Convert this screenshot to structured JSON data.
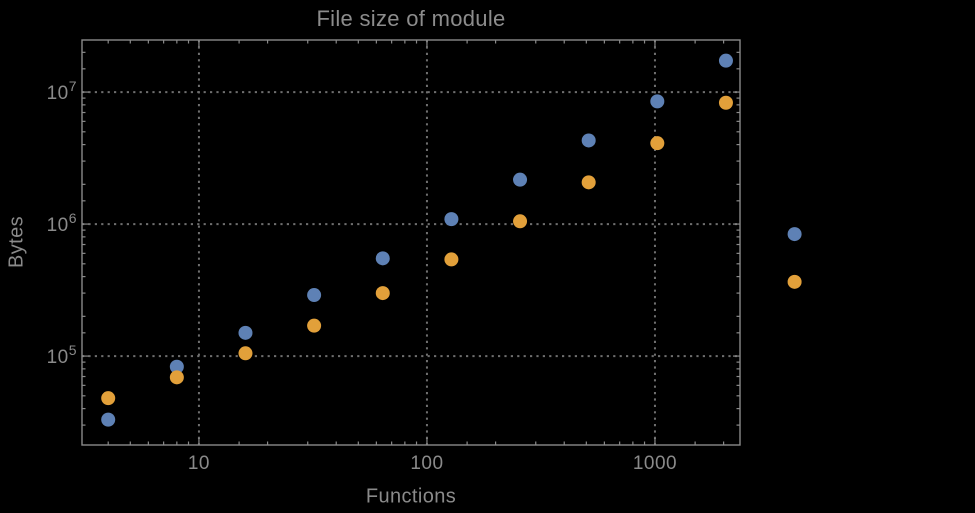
{
  "chart_data": {
    "type": "scatter",
    "title": "File size of module",
    "xlabel": "Functions",
    "ylabel": "Bytes",
    "x_scale": "log",
    "y_scale": "log",
    "xlim": [
      3.07,
      2360
    ],
    "ylim": [
      21200,
      24800000
    ],
    "x_ticks": [
      10,
      100,
      1000
    ],
    "y_ticks": [
      100000,
      1000000,
      10000000
    ],
    "grid": "dotted-major",
    "legend_position": "none",
    "x": [
      4,
      8,
      16,
      32,
      64,
      128,
      256,
      512,
      1024,
      2048,
      4096
    ],
    "series": [
      {
        "name": "blue",
        "color": "#5E81B5",
        "values": [
          33000,
          83000,
          150000,
          290000,
          550000,
          1090000,
          2170000,
          4300000,
          8500000,
          17300000,
          840000
        ]
      },
      {
        "name": "orange",
        "color": "#E2A03A",
        "values": [
          48000,
          69000,
          105000,
          170000,
          300000,
          540000,
          1050000,
          2070000,
          4100000,
          8300000,
          365000
        ]
      }
    ],
    "note": "last pair of points (x=4096) is rendered outside the right edge of the plot frame"
  },
  "style": {
    "background": "#000000",
    "frame_color": "#8A8A8A",
    "grid_color": "#6F6F6F",
    "text_color": "#8A8A8A",
    "title_color": "#8C8C8C",
    "point_radius": 7
  }
}
